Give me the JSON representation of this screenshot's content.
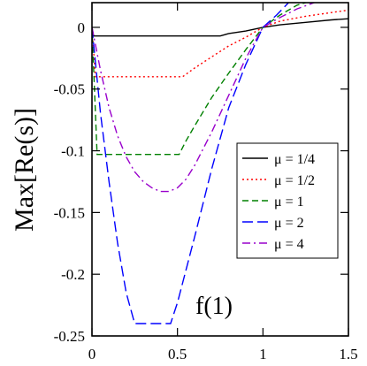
{
  "chart_data": {
    "type": "line",
    "title": "",
    "xlabel": "",
    "ylabel": "Max[Re(s)]",
    "annotation": "f(1)",
    "xlim": [
      0,
      1.5
    ],
    "ylim": [
      -0.25,
      0.02
    ],
    "x_ticks": [
      0,
      0.5,
      1,
      1.5
    ],
    "x_tick_labels": [
      "0",
      "0.5",
      "1",
      "1.5"
    ],
    "y_ticks": [
      0,
      -0.05,
      -0.1,
      -0.15,
      -0.2,
      -0.25
    ],
    "y_tick_labels": [
      "0",
      "-0.05",
      "-0.1",
      "-0.15",
      "-0.2",
      "-0.25"
    ],
    "grid": false,
    "legend_position": "right",
    "series": [
      {
        "name": "μ = 1/4",
        "color": "#000000",
        "dash": "solid",
        "points": [
          [
            0,
            0
          ],
          [
            0.01,
            -0.007
          ],
          [
            0.2,
            -0.007
          ],
          [
            0.5,
            -0.007
          ],
          [
            0.75,
            -0.007
          ],
          [
            0.8,
            -0.005
          ],
          [
            0.9,
            -0.003
          ],
          [
            1.0,
            0
          ],
          [
            1.1,
            0.002
          ],
          [
            1.25,
            0.004
          ],
          [
            1.4,
            0.006
          ],
          [
            1.5,
            0.007
          ]
        ]
      },
      {
        "name": "μ = 1/2",
        "color": "#ff0000",
        "dash": "dotted",
        "points": [
          [
            0,
            0
          ],
          [
            0.02,
            -0.04
          ],
          [
            0.2,
            -0.04
          ],
          [
            0.4,
            -0.04
          ],
          [
            0.53,
            -0.04
          ],
          [
            0.6,
            -0.033
          ],
          [
            0.7,
            -0.024
          ],
          [
            0.8,
            -0.015
          ],
          [
            0.9,
            -0.008
          ],
          [
            1.0,
            0
          ],
          [
            1.1,
            0.005
          ],
          [
            1.25,
            0.009
          ],
          [
            1.4,
            0.012
          ],
          [
            1.5,
            0.014
          ]
        ]
      },
      {
        "name": "μ = 1",
        "color": "#008000",
        "dash": "dashed",
        "points": [
          [
            0,
            0
          ],
          [
            0.03,
            -0.103
          ],
          [
            0.2,
            -0.103
          ],
          [
            0.4,
            -0.103
          ],
          [
            0.51,
            -0.103
          ],
          [
            0.55,
            -0.092
          ],
          [
            0.6,
            -0.08
          ],
          [
            0.7,
            -0.057
          ],
          [
            0.8,
            -0.037
          ],
          [
            0.9,
            -0.018
          ],
          [
            1.0,
            0
          ],
          [
            1.1,
            0.01
          ],
          [
            1.2,
            0.018
          ],
          [
            1.25,
            0.02
          ]
        ]
      },
      {
        "name": "μ = 2",
        "color": "#0000ff",
        "dash": "longdash",
        "points": [
          [
            0,
            0
          ],
          [
            0.05,
            -0.07
          ],
          [
            0.1,
            -0.125
          ],
          [
            0.15,
            -0.175
          ],
          [
            0.2,
            -0.215
          ],
          [
            0.25,
            -0.24
          ],
          [
            0.35,
            -0.24
          ],
          [
            0.46,
            -0.24
          ],
          [
            0.5,
            -0.223
          ],
          [
            0.6,
            -0.17
          ],
          [
            0.7,
            -0.115
          ],
          [
            0.8,
            -0.065
          ],
          [
            0.9,
            -0.03
          ],
          [
            1.0,
            0
          ],
          [
            1.08,
            0.01
          ],
          [
            1.15,
            0.02
          ]
        ]
      },
      {
        "name": "μ = 4",
        "color": "#9900cc",
        "dash": "dashdot",
        "points": [
          [
            0,
            0
          ],
          [
            0.05,
            -0.035
          ],
          [
            0.1,
            -0.065
          ],
          [
            0.15,
            -0.088
          ],
          [
            0.2,
            -0.105
          ],
          [
            0.25,
            -0.117
          ],
          [
            0.3,
            -0.125
          ],
          [
            0.35,
            -0.13
          ],
          [
            0.4,
            -0.133
          ],
          [
            0.45,
            -0.133
          ],
          [
            0.5,
            -0.13
          ],
          [
            0.55,
            -0.123
          ],
          [
            0.6,
            -0.112
          ],
          [
            0.7,
            -0.085
          ],
          [
            0.8,
            -0.055
          ],
          [
            0.9,
            -0.025
          ],
          [
            1.0,
            0
          ],
          [
            1.1,
            0.008
          ],
          [
            1.2,
            0.015
          ],
          [
            1.3,
            0.02
          ]
        ]
      }
    ]
  }
}
